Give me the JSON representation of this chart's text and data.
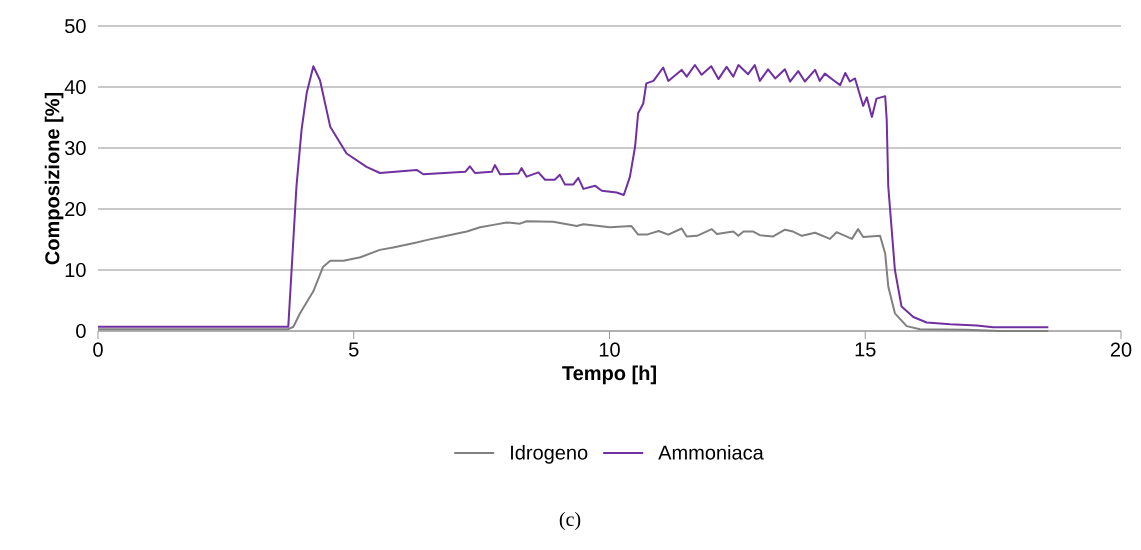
{
  "chart_data": {
    "type": "line",
    "xlabel": "Tempo [h]",
    "ylabel": "Composizione [%]",
    "xlim": [
      0,
      20
    ],
    "ylim": [
      0,
      50
    ],
    "xticks": [
      0,
      5,
      10,
      15,
      20
    ],
    "yticks": [
      0,
      10,
      20,
      30,
      40,
      50
    ],
    "grid": "y",
    "legend": "bottom",
    "marker": "none",
    "line_style": "solid",
    "annotations": [
      "(c)"
    ],
    "series": [
      {
        "name": "Idrogeno",
        "color": "#808080",
        "x": [
          0,
          3.72,
          3.82,
          3.95,
          4.21,
          4.4,
          4.54,
          4.8,
          5.13,
          5.51,
          5.77,
          6.23,
          6.42,
          6.75,
          7.21,
          7.47,
          7.73,
          7.99,
          8.25,
          8.38,
          8.9,
          9.36,
          9.49,
          10.01,
          10.43,
          10.56,
          10.73,
          10.96,
          11.15,
          11.41,
          11.51,
          11.71,
          12.0,
          12.1,
          12.42,
          12.52,
          12.62,
          12.81,
          12.94,
          13.2,
          13.43,
          13.59,
          13.76,
          14.02,
          14.31,
          14.44,
          14.74,
          14.86,
          14.96,
          15.29,
          15.39,
          15.45,
          15.58,
          15.81,
          16.07,
          16.98,
          17.63,
          18.58
        ],
        "values": [
          0.3,
          0.3,
          0.7,
          2.9,
          6.5,
          10.5,
          11.5,
          11.5,
          12.1,
          13.3,
          13.7,
          14.5,
          14.9,
          15.5,
          16.3,
          17.0,
          17.4,
          17.8,
          17.6,
          18.0,
          17.9,
          17.2,
          17.5,
          17.0,
          17.2,
          15.8,
          15.8,
          16.4,
          15.8,
          16.8,
          15.5,
          15.6,
          16.7,
          15.9,
          16.3,
          15.6,
          16.3,
          16.3,
          15.7,
          15.5,
          16.6,
          16.3,
          15.6,
          16.1,
          15.1,
          16.2,
          15.1,
          16.7,
          15.4,
          15.6,
          12.7,
          7.3,
          2.9,
          0.8,
          0.3,
          0.2,
          0,
          0
        ]
      },
      {
        "name": "Ammoniaca",
        "color": "#7030a0",
        "x": [
          0,
          3.72,
          3.88,
          3.98,
          4.08,
          4.21,
          4.34,
          4.54,
          4.86,
          5.25,
          5.51,
          6.23,
          6.36,
          7.18,
          7.27,
          7.37,
          7.7,
          7.76,
          7.86,
          8.22,
          8.28,
          8.38,
          8.61,
          8.74,
          8.93,
          9.03,
          9.13,
          9.29,
          9.39,
          9.49,
          9.72,
          9.85,
          10.14,
          10.28,
          10.4,
          10.5,
          10.56,
          10.66,
          10.72,
          10.86,
          11.05,
          11.15,
          11.41,
          11.51,
          11.67,
          11.8,
          11.99,
          12.13,
          12.29,
          12.42,
          12.52,
          12.71,
          12.84,
          12.94,
          13.1,
          13.24,
          13.43,
          13.53,
          13.69,
          13.82,
          14.02,
          14.11,
          14.21,
          14.38,
          14.51,
          14.61,
          14.7,
          14.8,
          14.96,
          15.03,
          15.13,
          15.22,
          15.39,
          15.42,
          15.45,
          15.58,
          15.71,
          15.94,
          16.2,
          16.66,
          17.18,
          17.5,
          18.58
        ],
        "values": [
          0.7,
          0.7,
          23.7,
          33.0,
          39.0,
          43.4,
          41.1,
          33.5,
          29.1,
          26.9,
          25.9,
          26.4,
          25.7,
          26.1,
          27.0,
          25.9,
          26.1,
          27.2,
          25.7,
          25.8,
          26.7,
          25.3,
          26.0,
          24.8,
          24.8,
          25.6,
          24.0,
          24.0,
          25.1,
          23.3,
          23.8,
          23.0,
          22.7,
          22.3,
          25.3,
          30.2,
          35.7,
          37.3,
          40.6,
          41.0,
          43.2,
          41.0,
          42.8,
          41.7,
          43.6,
          42.0,
          43.4,
          41.3,
          43.3,
          41.7,
          43.6,
          42.1,
          43.6,
          41.0,
          42.9,
          41.4,
          42.9,
          40.9,
          42.6,
          40.9,
          42.8,
          41.0,
          42.2,
          41.1,
          40.3,
          42.3,
          40.9,
          41.4,
          36.9,
          38.3,
          35.1,
          38.1,
          38.5,
          34.6,
          23.7,
          10.0,
          4.0,
          2.3,
          1.4,
          1.1,
          0.9,
          0.6,
          0.6
        ]
      }
    ]
  }
}
